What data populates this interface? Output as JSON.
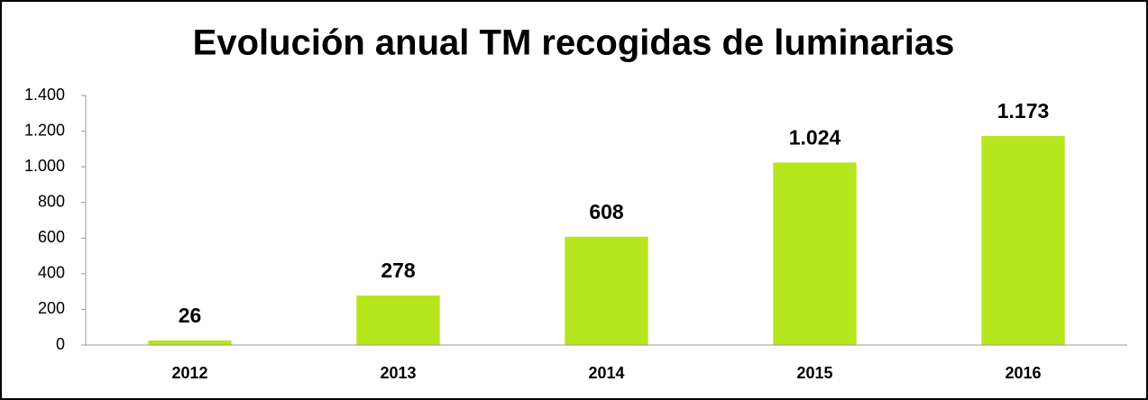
{
  "chart_data": {
    "type": "bar",
    "title": "Evolución anual TM recogidas de luminarias",
    "categories": [
      "2012",
      "2013",
      "2014",
      "2015",
      "2016"
    ],
    "values": [
      26,
      278,
      608,
      1024,
      1173
    ],
    "value_labels": [
      "26",
      "278",
      "608",
      "1.024",
      "1.173"
    ],
    "color": "#b5e61d",
    "ylim": [
      0,
      1400
    ],
    "yticks": [
      0,
      200,
      400,
      600,
      800,
      {
        "value": 1000,
        "label": "1.000"
      },
      {
        "value": 1200,
        "label": "1.200"
      },
      {
        "value": 1400,
        "label": "1.400"
      }
    ],
    "grid": false
  }
}
